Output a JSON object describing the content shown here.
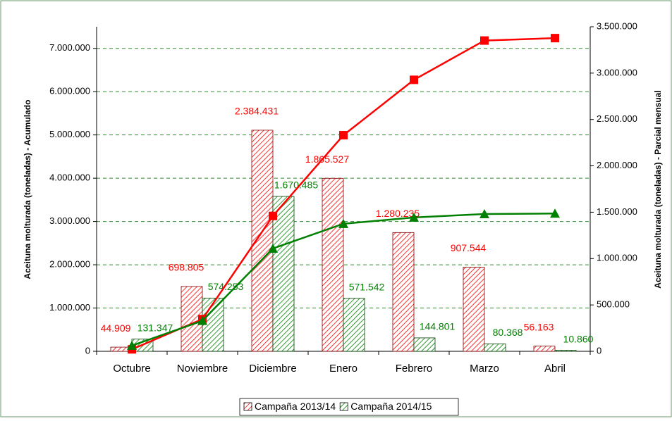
{
  "chart_data": {
    "type": "bar-line",
    "categories": [
      "Octubre",
      "Noviembre",
      "Diciembre",
      "Enero",
      "Febrero",
      "Marzo",
      "Abril"
    ],
    "y_label": "Aceituna molturada (toneladas) - Acumulado",
    "y2_label": "Aceituna molturada (toneladas) - Parcial mensual",
    "ylim": [
      0,
      7500000
    ],
    "yticks": [
      0,
      {
        "value": 1000000,
        "label": "1.000.000"
      },
      {
        "value": 2000000,
        "label": "2.000.000"
      },
      {
        "value": 3000000,
        "label": "3.000.000"
      },
      {
        "value": 4000000,
        "label": "4.000.000"
      },
      {
        "value": 5000000,
        "label": "5.000.000"
      },
      {
        "value": 6000000,
        "label": "6.000.000"
      },
      {
        "value": 7000000,
        "label": "7.000.000"
      }
    ],
    "y2lim": [
      0,
      3500000
    ],
    "y2ticks": [
      0,
      {
        "value": 500000,
        "label": "500.000"
      },
      {
        "value": 1000000,
        "label": "1.000.000"
      },
      {
        "value": 1500000,
        "label": "1.500.000"
      },
      {
        "value": 2000000,
        "label": "2.000.000"
      },
      {
        "value": 2500000,
        "label": "2.500.000"
      },
      {
        "value": 3000000,
        "label": "3.000.000"
      },
      {
        "value": 3500000,
        "label": "3.500.000"
      }
    ],
    "grid": true,
    "legend": "bottom",
    "series": [
      {
        "name": "Campaña 2013/14",
        "kind": "bar",
        "axis": "y2",
        "color": "#ff0000",
        "values": [
          44909,
          698805,
          2384431,
          1865527,
          1280235,
          907544,
          56163
        ],
        "value_labels": [
          "44.909",
          "698.805",
          "2.384.431",
          "1.865.527",
          "1.280.235",
          "907.544",
          "56.163"
        ]
      },
      {
        "name": "Campaña 2014/15",
        "kind": "bar",
        "axis": "y2",
        "color": "#008000",
        "values": [
          131347,
          574253,
          1670485,
          571542,
          144801,
          80368,
          10860
        ],
        "value_labels": [
          "131.347",
          "574.253",
          "1.670.485",
          "571.542",
          "144.801",
          "80.368",
          "10.860"
        ]
      },
      {
        "kind": "line",
        "color": "#ff0000",
        "marker": "square",
        "values": [
          44909,
          743714,
          3128145,
          4993672,
          6273907,
          7181451,
          7237614
        ]
      },
      {
        "kind": "line",
        "color": "#008000",
        "marker": "triangle",
        "values": [
          131347,
          705600,
          2376085,
          2947627,
          3092428,
          3172796,
          3183656
        ]
      }
    ]
  }
}
